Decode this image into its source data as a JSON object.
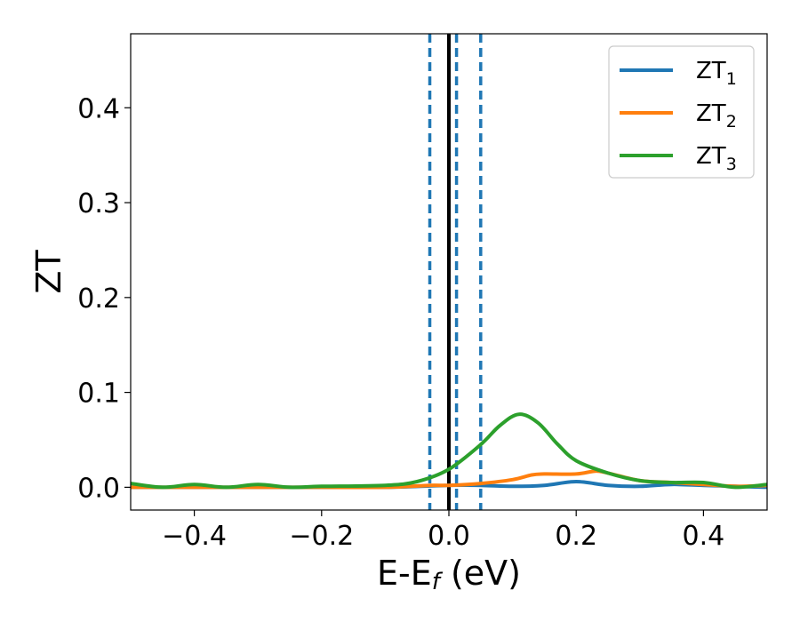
{
  "chart_data": {
    "type": "line",
    "xlabel": "E-E",
    "xlabel_sub": "f",
    "xlabel_unit": " (eV)",
    "ylabel": "ZT",
    "xlim": [
      -0.5,
      0.5
    ],
    "ylim": [
      -0.024,
      0.478
    ],
    "xticks": [
      -0.4,
      -0.2,
      0.0,
      0.2,
      0.4
    ],
    "xtick_labels": [
      "−0.4",
      "−0.2",
      "0.0",
      "0.2",
      "0.4"
    ],
    "yticks": [
      0.0,
      0.1,
      0.2,
      0.3,
      0.4
    ],
    "ytick_labels": [
      "0.0",
      "0.1",
      "0.2",
      "0.3",
      "0.4"
    ],
    "grid": false,
    "legend_position": "top-right",
    "vertical_lines": [
      {
        "x": 0.0,
        "style": "solid",
        "color": "#000000"
      },
      {
        "x": -0.03,
        "style": "dashed",
        "color": "#1f77b4"
      },
      {
        "x": 0.012,
        "style": "dashed",
        "color": "#1f77b4"
      },
      {
        "x": 0.05,
        "style": "dashed",
        "color": "#1f77b4"
      }
    ],
    "series": [
      {
        "name": "ZT",
        "name_sub": "1",
        "color": "#1f77b4",
        "x": [
          -0.5,
          -0.4,
          -0.3,
          -0.2,
          -0.1,
          0.0,
          0.05,
          0.1,
          0.15,
          0.2,
          0.25,
          0.3,
          0.35,
          0.4,
          0.45,
          0.5
        ],
        "y": [
          0.0,
          0.0,
          0.0,
          0.0,
          0.0,
          0.002,
          0.002,
          0.001,
          0.002,
          0.006,
          0.002,
          0.001,
          0.003,
          0.002,
          0.001,
          0.0
        ]
      },
      {
        "name": "ZT",
        "name_sub": "2",
        "color": "#ff7f0e",
        "x": [
          -0.5,
          -0.4,
          -0.3,
          -0.2,
          -0.1,
          -0.03,
          0.0,
          0.05,
          0.1,
          0.13,
          0.15,
          0.2,
          0.23,
          0.25,
          0.3,
          0.35,
          0.4,
          0.45,
          0.5
        ],
        "y": [
          0.0,
          0.0,
          0.0,
          0.0,
          0.0,
          0.002,
          0.002,
          0.004,
          0.008,
          0.013,
          0.014,
          0.014,
          0.017,
          0.015,
          0.007,
          0.005,
          0.003,
          0.001,
          0.002
        ]
      },
      {
        "name": "ZT",
        "name_sub": "3",
        "color": "#2ca02c",
        "x": [
          -0.5,
          -0.45,
          -0.4,
          -0.35,
          -0.3,
          -0.25,
          -0.2,
          -0.1,
          -0.05,
          0.0,
          0.05,
          0.08,
          0.11,
          0.14,
          0.17,
          0.2,
          0.25,
          0.3,
          0.35,
          0.4,
          0.45,
          0.5
        ],
        "y": [
          0.004,
          0.0,
          0.003,
          0.0,
          0.003,
          0.0,
          0.001,
          0.002,
          0.006,
          0.019,
          0.045,
          0.065,
          0.077,
          0.068,
          0.046,
          0.028,
          0.015,
          0.007,
          0.005,
          0.005,
          0.0,
          0.003
        ]
      }
    ]
  }
}
